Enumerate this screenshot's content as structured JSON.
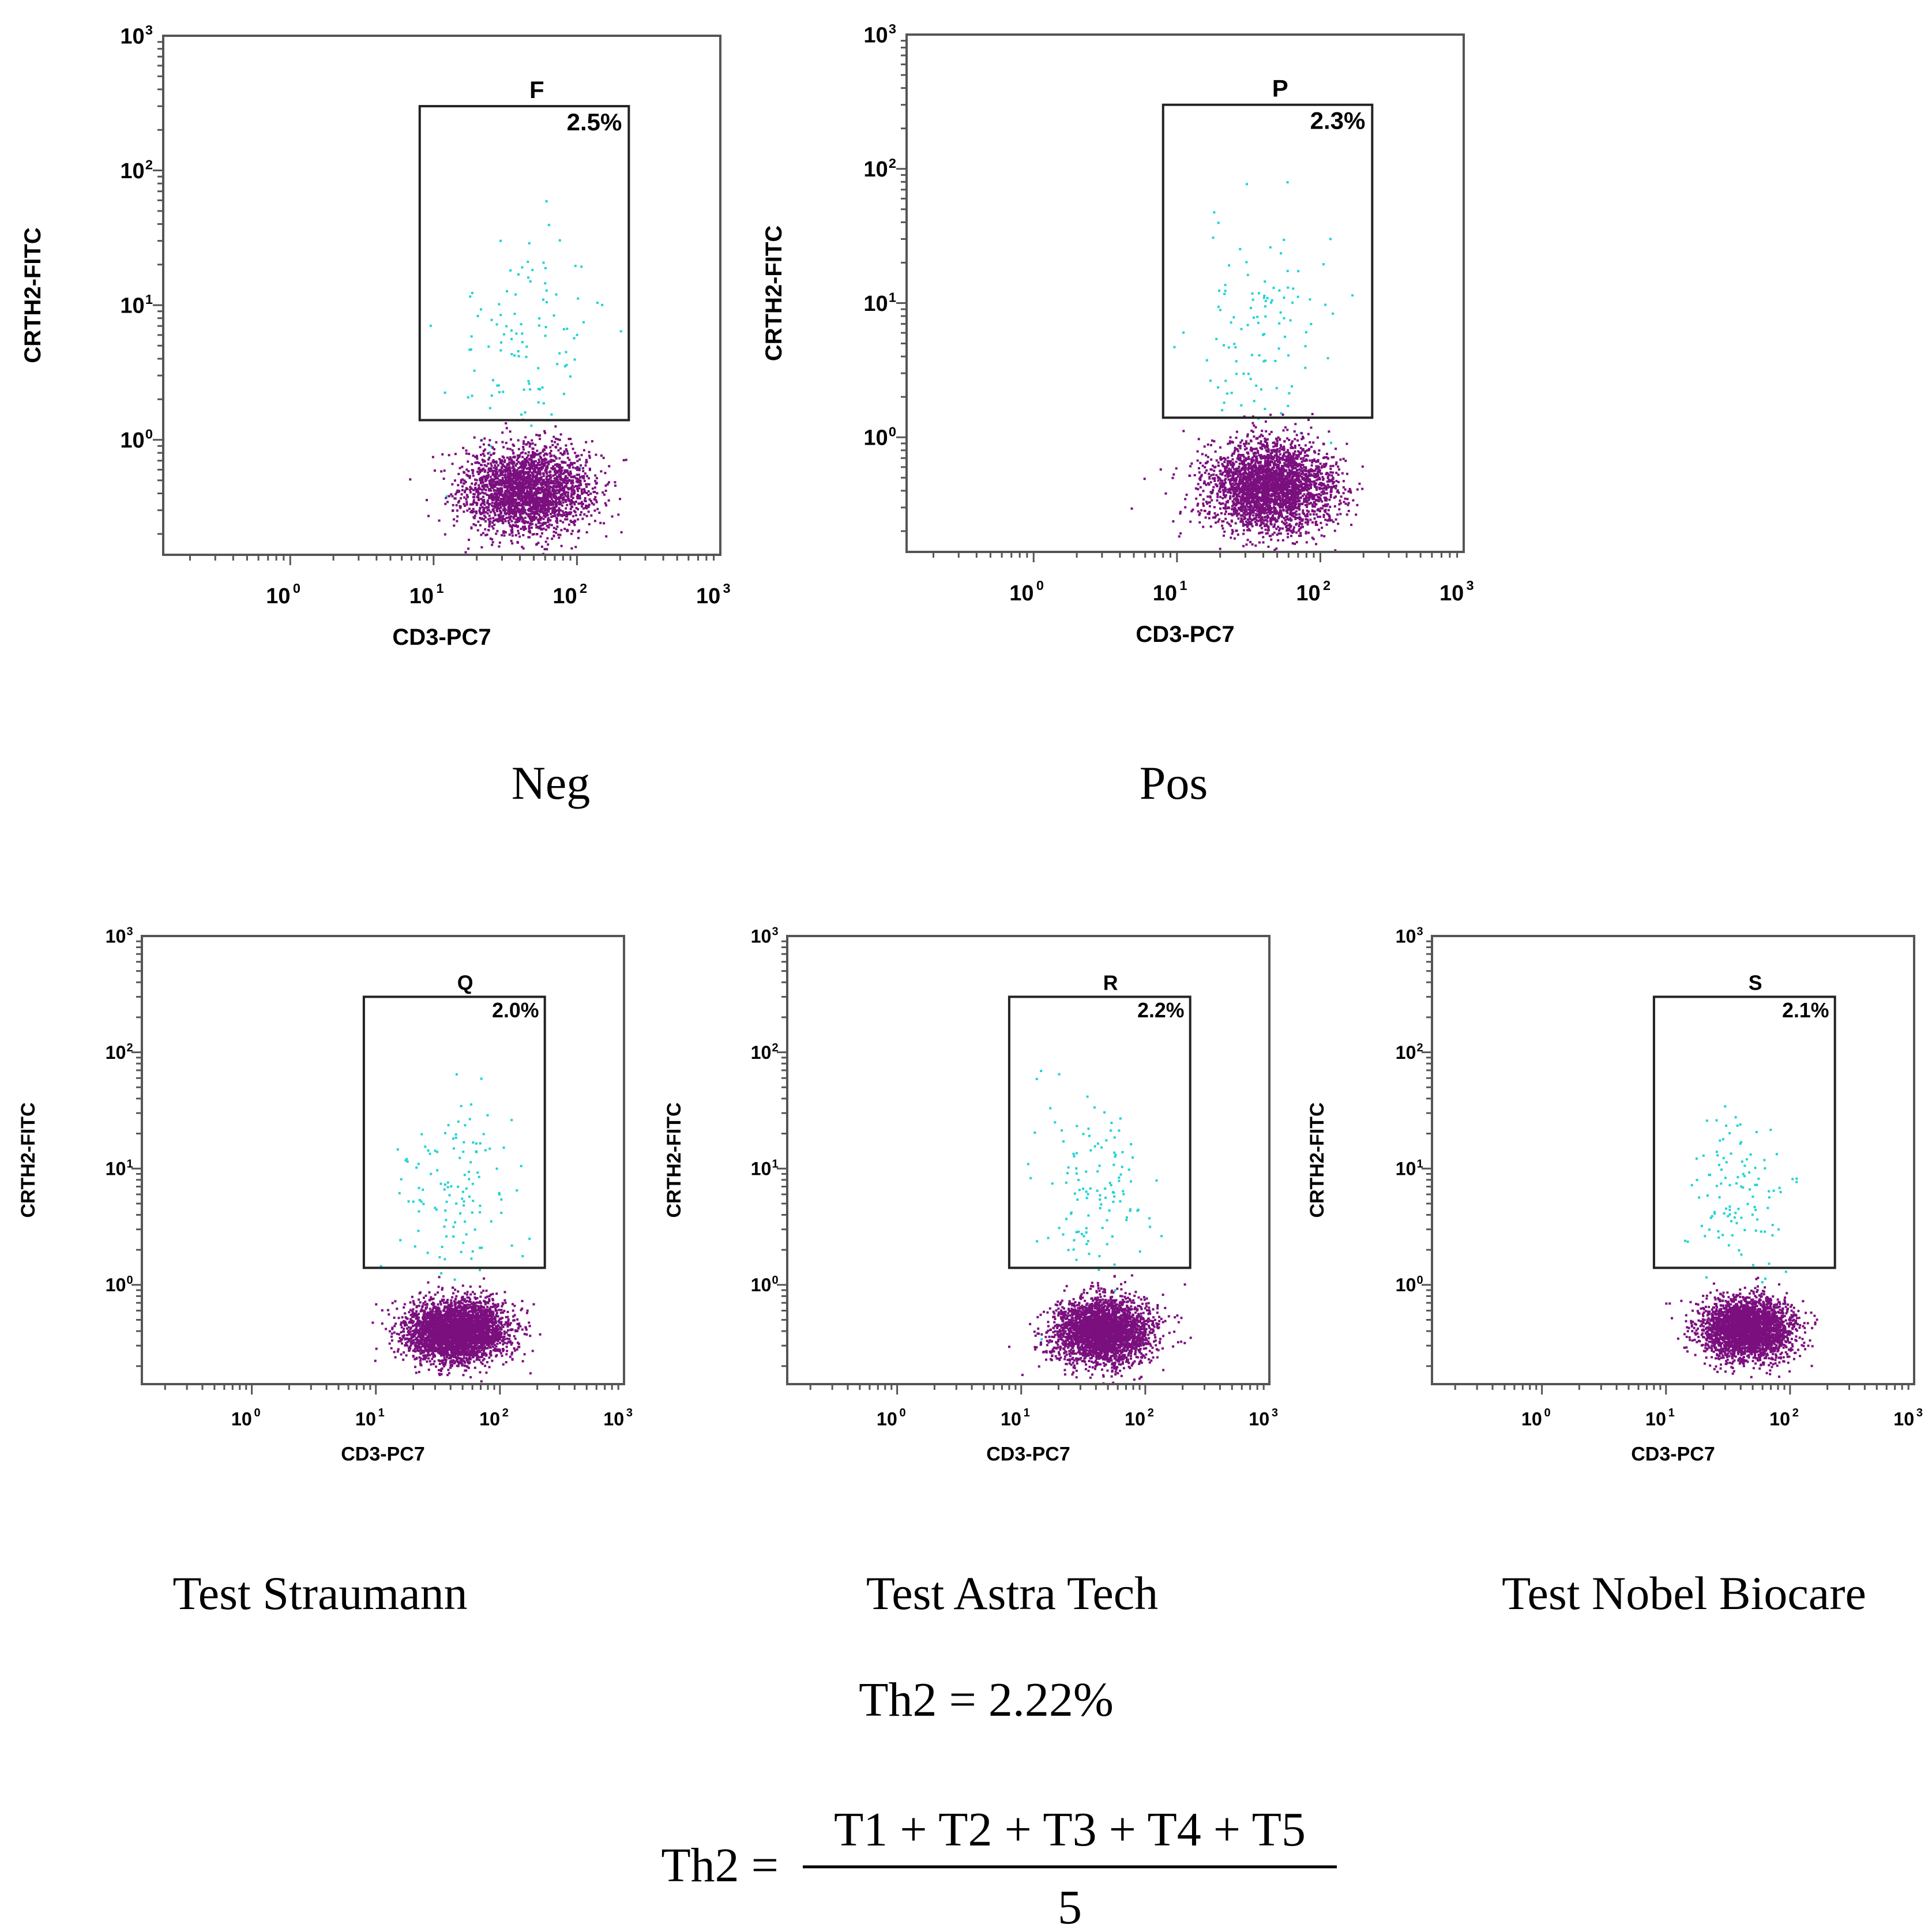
{
  "chart_data": [
    {
      "type": "scatter",
      "panel": "Neg",
      "caption": "Neg",
      "xlabel": "CD3-PC7",
      "ylabel": "CRTH2-FITC",
      "xscale": "log",
      "yscale": "log",
      "xlim": [
        0.13,
        1000
      ],
      "ylim": [
        0.14,
        1000
      ],
      "xticks": [
        1,
        10,
        100,
        1000
      ],
      "yticks": [
        1,
        10,
        100,
        1000
      ],
      "gate": {
        "name": "F",
        "percent": "2.5%",
        "x_range": [
          8,
          230
        ],
        "y_range": [
          1.4,
          300
        ]
      },
      "populations": [
        {
          "name": "gated",
          "color": "#22d3d3",
          "center": [
            45,
            5.5
          ],
          "spread": [
            0.28,
            0.42
          ],
          "count": 110
        },
        {
          "name": "main",
          "color": "#7b0f7e",
          "center": [
            45,
            0.42
          ],
          "spread": [
            0.22,
            0.16
          ],
          "count": 2600
        }
      ]
    },
    {
      "type": "scatter",
      "panel": "Pos",
      "caption": "Pos",
      "xlabel": "CD3-PC7",
      "ylabel": "CRTH2-FITC",
      "xscale": "log",
      "yscale": "log",
      "xlim": [
        0.13,
        1000
      ],
      "ylim": [
        0.14,
        1000
      ],
      "xticks": [
        1,
        10,
        100,
        1000
      ],
      "yticks": [
        1,
        10,
        100,
        1000
      ],
      "gate": {
        "name": "P",
        "percent": "2.3%",
        "x_range": [
          8,
          230
        ],
        "y_range": [
          1.4,
          300
        ]
      },
      "populations": [
        {
          "name": "gated",
          "color": "#22d3d3",
          "center": [
            40,
            6
          ],
          "spread": [
            0.26,
            0.42
          ],
          "count": 105
        },
        {
          "name": "main",
          "color": "#7b0f7e",
          "center": [
            45,
            0.42
          ],
          "spread": [
            0.22,
            0.17
          ],
          "count": 3000
        }
      ]
    },
    {
      "type": "scatter",
      "panel": "Test Straumann",
      "caption": "Test Straumann",
      "xlabel": "CD3-PC7",
      "ylabel": "CRTH2-FITC",
      "xscale": "log",
      "yscale": "log",
      "xlim": [
        0.13,
        1000
      ],
      "ylim": [
        0.14,
        1000
      ],
      "xticks": [
        1,
        10,
        100,
        1000
      ],
      "yticks": [
        1,
        10,
        100,
        1000
      ],
      "gate": {
        "name": "Q",
        "percent": "2.0%",
        "x_range": [
          8,
          230
        ],
        "y_range": [
          1.4,
          300
        ]
      },
      "populations": [
        {
          "name": "gated",
          "color": "#22d3d3",
          "center": [
            40,
            6
          ],
          "spread": [
            0.22,
            0.38
          ],
          "count": 120
        },
        {
          "name": "main",
          "color": "#7b0f7e",
          "center": [
            45,
            0.4
          ],
          "spread": [
            0.2,
            0.13
          ],
          "count": 3600
        }
      ]
    },
    {
      "type": "scatter",
      "panel": "Test Astra Tech",
      "caption": "Test Astra Tech",
      "xlabel": "CD3-PC7",
      "ylabel": "CRTH2-FITC",
      "xscale": "log",
      "yscale": "log",
      "xlim": [
        0.13,
        1000
      ],
      "ylim": [
        0.14,
        1000
      ],
      "xticks": [
        1,
        10,
        100,
        1000
      ],
      "yticks": [
        1,
        10,
        100,
        1000
      ],
      "gate": {
        "name": "R",
        "percent": "2.2%",
        "x_range": [
          8,
          230
        ],
        "y_range": [
          1.4,
          300
        ]
      },
      "populations": [
        {
          "name": "gated",
          "color": "#22d3d3",
          "center": [
            40,
            6
          ],
          "spread": [
            0.24,
            0.4
          ],
          "count": 120
        },
        {
          "name": "main",
          "color": "#7b0f7e",
          "center": [
            45,
            0.4
          ],
          "spread": [
            0.2,
            0.14
          ],
          "count": 3000
        }
      ]
    },
    {
      "type": "scatter",
      "panel": "Test Nobel Biocare",
      "caption": "Test Nobel Biocare",
      "xlabel": "CD3-PC7",
      "ylabel": "CRTH2-FITC",
      "xscale": "log",
      "yscale": "log",
      "xlim": [
        0.13,
        1000
      ],
      "ylim": [
        0.14,
        1000
      ],
      "xticks": [
        1,
        10,
        100,
        1000
      ],
      "yticks": [
        1,
        10,
        100,
        1000
      ],
      "gate": {
        "name": "S",
        "percent": "2.1%",
        "x_range": [
          8,
          230
        ],
        "y_range": [
          1.4,
          300
        ]
      },
      "populations": [
        {
          "name": "gated",
          "color": "#22d3d3",
          "center": [
            40,
            6
          ],
          "spread": [
            0.2,
            0.38
          ],
          "count": 110
        },
        {
          "name": "main",
          "color": "#7b0f7e",
          "center": [
            45,
            0.42
          ],
          "spread": [
            0.18,
            0.13
          ],
          "count": 3000
        }
      ]
    }
  ],
  "result": {
    "label": "Th2 = 2.22%",
    "lhs": "Th2 =",
    "numerator": "T1 + T2 + T3 + T4 + T5",
    "denominator": "5"
  },
  "colors": {
    "gated": "#22d3d3",
    "main": "#7b0f7e",
    "frame": "#555555"
  }
}
